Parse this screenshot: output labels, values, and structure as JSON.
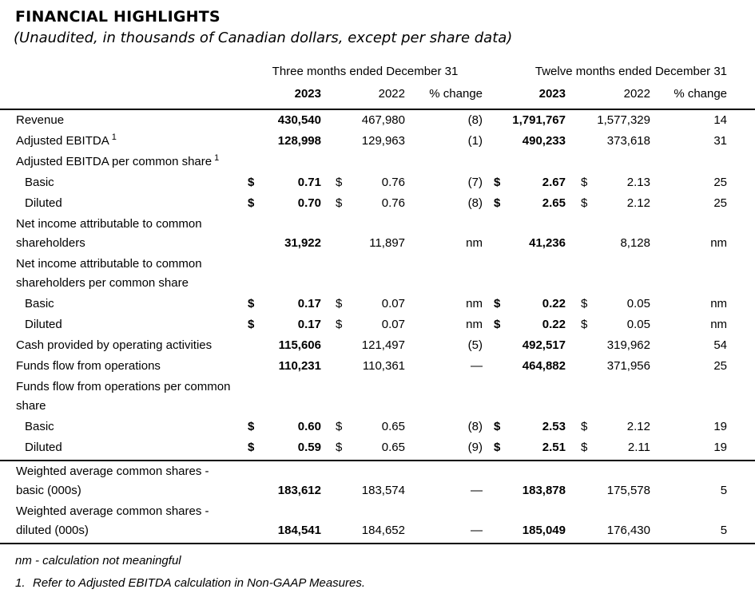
{
  "title": "FINANCIAL HIGHLIGHTS",
  "subtitle": "(Unaudited, in thousands of Canadian dollars, except per share data)",
  "table": {
    "group_headers": [
      "Three months ended December 31",
      "Twelve months ended December 31"
    ],
    "col_headers": [
      "2023",
      "2022",
      "% change"
    ],
    "rows": [
      {
        "label": "Revenue",
        "cells": {
          "q_2023": [
            "",
            "430,540"
          ],
          "q_2022": [
            "",
            "467,980"
          ],
          "q_pct": "(8)",
          "y_2023": [
            "",
            "1,791,767"
          ],
          "y_2022": [
            "",
            "1,577,329"
          ],
          "y_pct": "14"
        }
      },
      {
        "label": "Adjusted EBITDA",
        "sup": "1",
        "cells": {
          "q_2023": [
            "",
            "128,998"
          ],
          "q_2022": [
            "",
            "129,963"
          ],
          "q_pct": "(1)",
          "y_2023": [
            "",
            "490,233"
          ],
          "y_2022": [
            "",
            "373,618"
          ],
          "y_pct": "31"
        }
      },
      {
        "label": "Adjusted EBITDA per common share",
        "sup": "1"
      },
      {
        "label": "Basic",
        "indent": true,
        "cells": {
          "q_2023": [
            "$",
            "0.71"
          ],
          "q_2022": [
            "$",
            "0.76"
          ],
          "q_pct": "(7)",
          "y_2023": [
            "$",
            "2.67"
          ],
          "y_2022": [
            "$",
            "2.13"
          ],
          "y_pct": "25"
        }
      },
      {
        "label": "Diluted",
        "indent": true,
        "cells": {
          "q_2023": [
            "$",
            "0.70"
          ],
          "q_2022": [
            "$",
            "0.76"
          ],
          "q_pct": "(8)",
          "y_2023": [
            "$",
            "2.65"
          ],
          "y_2022": [
            "$",
            "2.12"
          ],
          "y_pct": "25"
        }
      },
      {
        "label": "Net income attributable to common\nshareholders",
        "cells": {
          "q_2023": [
            "",
            "31,922"
          ],
          "q_2022": [
            "",
            "11,897"
          ],
          "q_pct": "nm",
          "y_2023": [
            "",
            "41,236"
          ],
          "y_2022": [
            "",
            "8,128"
          ],
          "y_pct": "nm"
        }
      },
      {
        "label": "Net income attributable to common\nshareholders per common share"
      },
      {
        "label": "Basic",
        "indent": true,
        "cells": {
          "q_2023": [
            "$",
            "0.17"
          ],
          "q_2022": [
            "$",
            "0.07"
          ],
          "q_pct": "nm",
          "y_2023": [
            "$",
            "0.22"
          ],
          "y_2022": [
            "$",
            "0.05"
          ],
          "y_pct": "nm"
        }
      },
      {
        "label": "Diluted",
        "indent": true,
        "cells": {
          "q_2023": [
            "$",
            "0.17"
          ],
          "q_2022": [
            "$",
            "0.07"
          ],
          "q_pct": "nm",
          "y_2023": [
            "$",
            "0.22"
          ],
          "y_2022": [
            "$",
            "0.05"
          ],
          "y_pct": "nm"
        }
      },
      {
        "label": "Cash provided by operating activities",
        "cells": {
          "q_2023": [
            "",
            "115,606"
          ],
          "q_2022": [
            "",
            "121,497"
          ],
          "q_pct": "(5)",
          "y_2023": [
            "",
            "492,517"
          ],
          "y_2022": [
            "",
            "319,962"
          ],
          "y_pct": "54"
        }
      },
      {
        "label": "Funds flow from operations",
        "cells": {
          "q_2023": [
            "",
            "110,231"
          ],
          "q_2022": [
            "",
            "110,361"
          ],
          "q_pct": "—",
          "y_2023": [
            "",
            "464,882"
          ],
          "y_2022": [
            "",
            "371,956"
          ],
          "y_pct": "25"
        }
      },
      {
        "label": "Funds flow from operations per common\nshare"
      },
      {
        "label": "Basic",
        "indent": true,
        "cells": {
          "q_2023": [
            "$",
            "0.60"
          ],
          "q_2022": [
            "$",
            "0.65"
          ],
          "q_pct": "(8)",
          "y_2023": [
            "$",
            "2.53"
          ],
          "y_2022": [
            "$",
            "2.12"
          ],
          "y_pct": "19"
        }
      },
      {
        "label": "Diluted",
        "indent": true,
        "rule_after": true,
        "cells": {
          "q_2023": [
            "$",
            "0.59"
          ],
          "q_2022": [
            "$",
            "0.65"
          ],
          "q_pct": "(9)",
          "y_2023": [
            "$",
            "2.51"
          ],
          "y_2022": [
            "$",
            "2.11"
          ],
          "y_pct": "19"
        }
      },
      {
        "label": "Weighted average common shares -\nbasic (000s)",
        "cells": {
          "q_2023": [
            "",
            "183,612"
          ],
          "q_2022": [
            "",
            "183,574"
          ],
          "q_pct": "—",
          "y_2023": [
            "",
            "183,878"
          ],
          "y_2022": [
            "",
            "175,578"
          ],
          "y_pct": "5"
        }
      },
      {
        "label": "Weighted average common shares -\ndiluted (000s)",
        "rule_after": true,
        "cells": {
          "q_2023": [
            "",
            "184,541"
          ],
          "q_2022": [
            "",
            "184,652"
          ],
          "q_pct": "—",
          "y_2023": [
            "",
            "185,049"
          ],
          "y_2022": [
            "",
            "176,430"
          ],
          "y_pct": "5"
        }
      }
    ]
  },
  "footnotes": [
    {
      "marker": "",
      "text": "nm - calculation not meaningful"
    },
    {
      "marker": "1.",
      "text": "Refer to Adjusted EBITDA calculation in Non-GAAP Measures."
    }
  ]
}
